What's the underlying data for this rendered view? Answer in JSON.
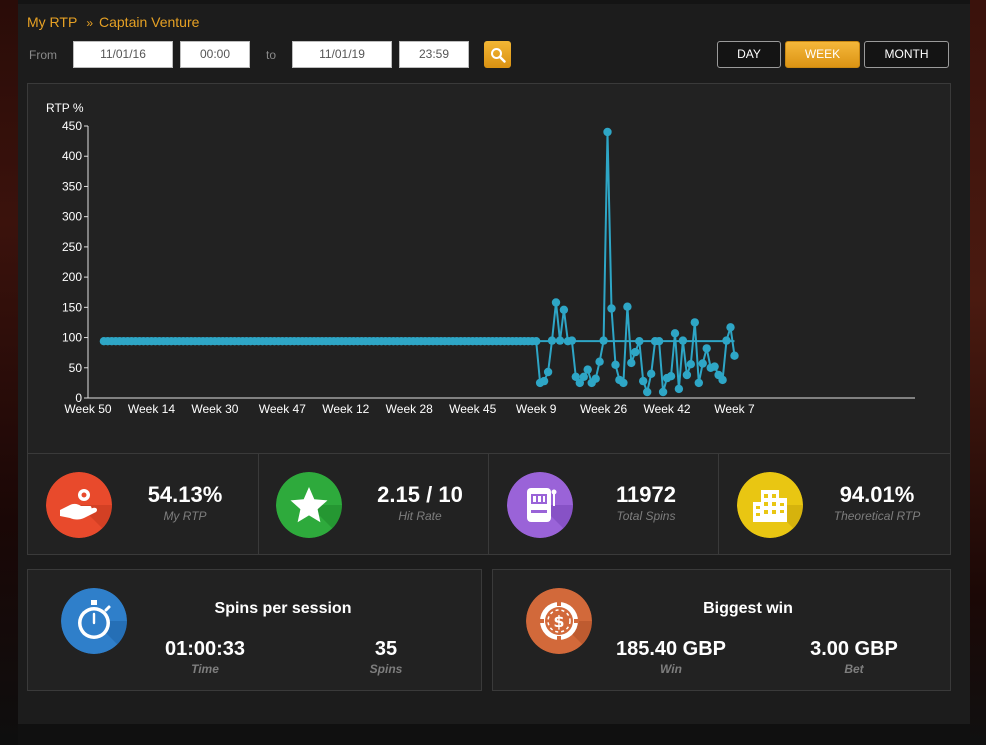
{
  "breadcrumb": {
    "root": "My RTP",
    "separator": "»",
    "current": "Captain Venture"
  },
  "filters": {
    "from_label": "From",
    "from_date": "11/01/16",
    "from_time": "00:00",
    "to_label": "to",
    "to_date": "11/01/19",
    "to_time": "23:59"
  },
  "range_buttons": [
    {
      "label": "DAY",
      "active": false
    },
    {
      "label": "WEEK",
      "active": true
    },
    {
      "label": "MONTH",
      "active": false
    }
  ],
  "chart_data": {
    "type": "line",
    "ylabel": "RTP %",
    "ylim": [
      0,
      450
    ],
    "yticks": [
      0,
      50,
      100,
      150,
      200,
      250,
      300,
      350,
      400,
      450
    ],
    "xlim": [
      0,
      206
    ],
    "xticks": [
      {
        "label": "Week 50",
        "x": 0
      },
      {
        "label": "Week 14",
        "x": 16
      },
      {
        "label": "Week 30",
        "x": 32
      },
      {
        "label": "Week 47",
        "x": 49
      },
      {
        "label": "Week 12",
        "x": 65
      },
      {
        "label": "Week 28",
        "x": 81
      },
      {
        "label": "Week 45",
        "x": 97
      },
      {
        "label": "Week 9",
        "x": 113
      },
      {
        "label": "Week 26",
        "x": 130
      },
      {
        "label": "Week 42",
        "x": 146
      },
      {
        "label": "Week 7",
        "x": 163
      }
    ],
    "color": "#2ea6c6",
    "grid": false,
    "reference_line": 94,
    "flat_value": 94,
    "flat_range": [
      4,
      108
    ],
    "points": [
      [
        109,
        94
      ],
      [
        110,
        94
      ],
      [
        111,
        94
      ],
      [
        112,
        94
      ],
      [
        113,
        94
      ],
      [
        114,
        25
      ],
      [
        115,
        28
      ],
      [
        116,
        43
      ],
      [
        117,
        95
      ],
      [
        118,
        158
      ],
      [
        119,
        95
      ],
      [
        120,
        146
      ],
      [
        121,
        94
      ],
      [
        122,
        95
      ],
      [
        123,
        35
      ],
      [
        124,
        25
      ],
      [
        125,
        35
      ],
      [
        126,
        47
      ],
      [
        127,
        25
      ],
      [
        128,
        32
      ],
      [
        129,
        60
      ],
      [
        130,
        95
      ],
      [
        131,
        440
      ],
      [
        132,
        148
      ],
      [
        133,
        55
      ],
      [
        134,
        30
      ],
      [
        135,
        25
      ],
      [
        136,
        151
      ],
      [
        137,
        58
      ],
      [
        138,
        76
      ],
      [
        139,
        94
      ],
      [
        140,
        28
      ],
      [
        141,
        10
      ],
      [
        142,
        40
      ],
      [
        143,
        94
      ],
      [
        144,
        94
      ],
      [
        145,
        10
      ],
      [
        146,
        33
      ],
      [
        147,
        36
      ],
      [
        148,
        107
      ],
      [
        149,
        15
      ],
      [
        150,
        95
      ],
      [
        151,
        38
      ],
      [
        152,
        56
      ],
      [
        153,
        125
      ],
      [
        154,
        25
      ],
      [
        155,
        57
      ],
      [
        156,
        82
      ],
      [
        157,
        50
      ],
      [
        158,
        52
      ],
      [
        159,
        38
      ],
      [
        160,
        30
      ],
      [
        161,
        95
      ],
      [
        162,
        117
      ],
      [
        163,
        70
      ]
    ]
  },
  "stats": [
    {
      "value": "54.13%",
      "label": "My RTP",
      "icon": "hand-coin-icon",
      "color": "#e84a2c"
    },
    {
      "value": "2.15 / 10",
      "label": "Hit Rate",
      "icon": "star-icon",
      "color": "#2eaa3c"
    },
    {
      "value": "11972",
      "label": "Total Spins",
      "icon": "slot-machine-icon",
      "color": "#9a63d8"
    },
    {
      "value": "94.01%",
      "label": "Theoretical RTP",
      "icon": "building-icon",
      "color": "#e9c612"
    }
  ],
  "spins_card": {
    "title": "Spins per session",
    "time_value": "01:00:33",
    "time_label": "Time",
    "spins_value": "35",
    "spins_label": "Spins",
    "icon": "stopwatch-icon",
    "color": "#2f7fca"
  },
  "win_card": {
    "title": "Biggest win",
    "win_value": "185.40 GBP",
    "win_label": "Win",
    "bet_value": "3.00 GBP",
    "bet_label": "Bet",
    "icon": "casino-chip-icon",
    "color": "#d2693a"
  }
}
